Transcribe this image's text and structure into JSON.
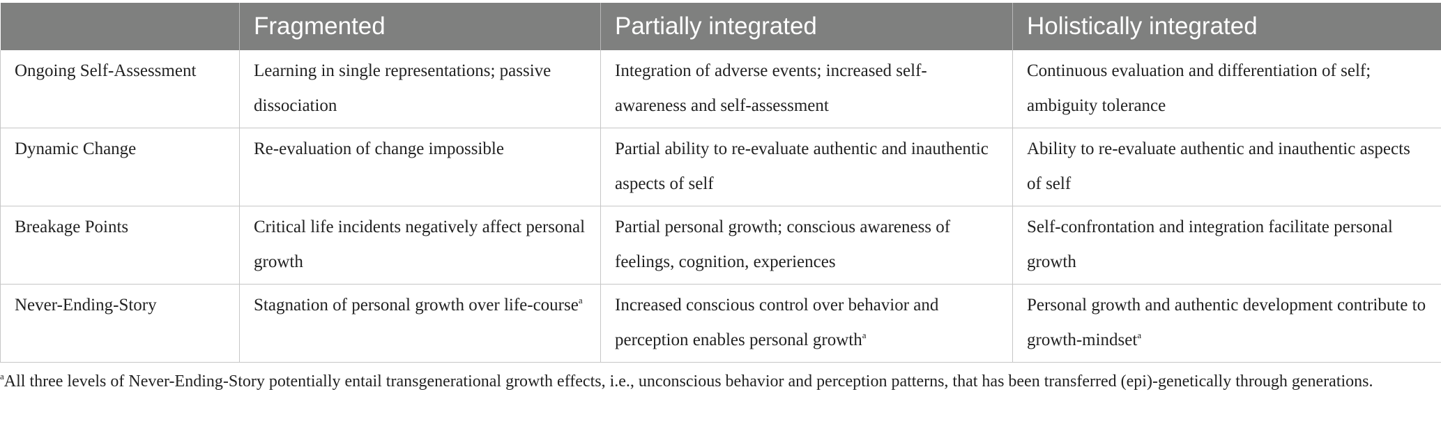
{
  "table": {
    "headers": [
      "",
      "Fragmented",
      "Partially integrated",
      "Holistically integrated"
    ],
    "rows": [
      {
        "label": "Ongoing Self-Assessment",
        "cells": [
          "Learning in single representations; passive dissociation",
          "Integration of adverse events; increased self-awareness and self-assessment",
          "Continuous evaluation and differentiation of self; ambiguity tolerance"
        ]
      },
      {
        "label": "Dynamic Change",
        "cells": [
          "Re-evaluation of change impossible",
          "Partial ability to re-evaluate authentic and inauthentic aspects of self",
          "Ability to re-evaluate authentic and inauthentic aspects of self"
        ]
      },
      {
        "label": "Breakage Points",
        "cells": [
          "Critical life incidents negatively affect personal growth",
          "Partial personal growth; conscious awareness of feelings, cognition, experiences",
          "Self-confrontation and integration facilitate personal growth"
        ]
      },
      {
        "label": "Never-Ending-Story",
        "cells": [
          "Stagnation of personal growth over life-course",
          "Increased conscious control over behavior and perception enables personal growth",
          "Personal growth and authentic development contribute to growth-mindset"
        ]
      }
    ],
    "footnote_marker": "a"
  },
  "footnote": {
    "marker": "a",
    "text": "All three levels of Never-Ending-Story potentially entail transgenerational growth effects, i.e., unconscious behavior and perception patterns, that has been transferred (epi)-genetically through generations."
  },
  "colors": {
    "header_background": "#7f807f",
    "header_text": "#ffffff",
    "grid_lines": "#c6c6c6",
    "body_text": "#222222"
  }
}
